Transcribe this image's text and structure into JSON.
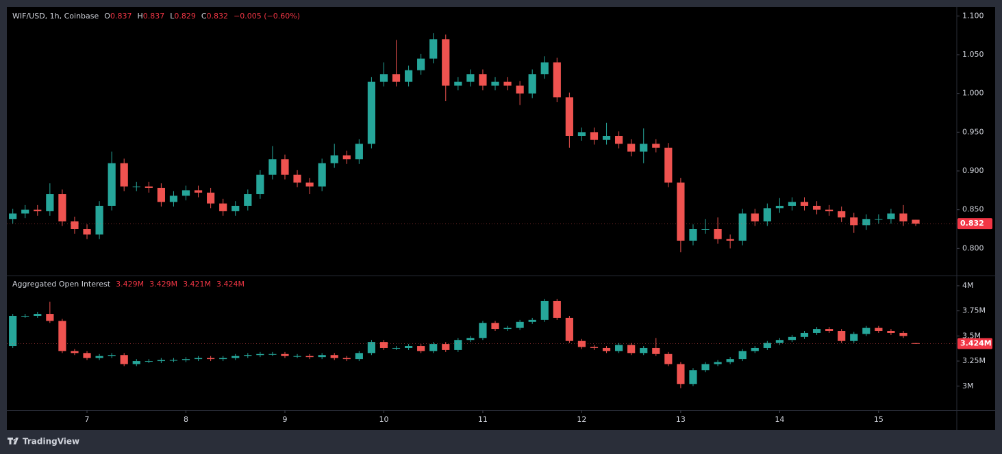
{
  "chart_data": [
    {
      "type": "candlestick",
      "title": "WIF/USD, 1h, Coinbase",
      "ohlc_labels": [
        {
          "label": "O",
          "value": "0.837"
        },
        {
          "label": "H",
          "value": "0.837"
        },
        {
          "label": "L",
          "value": "0.829"
        },
        {
          "label": "C",
          "value": "0.832"
        }
      ],
      "change": "−0.005 (−0.60%)",
      "up_color": "#26a69a",
      "down_color": "#ef5350",
      "x": [
        6.25,
        6.375,
        6.5,
        6.625,
        6.75,
        6.875,
        7,
        7.125,
        7.25,
        7.375,
        7.5,
        7.625,
        7.75,
        7.875,
        8,
        8.125,
        8.25,
        8.375,
        8.5,
        8.625,
        8.75,
        8.875,
        9,
        9.125,
        9.25,
        9.375,
        9.5,
        9.625,
        9.75,
        9.875,
        10,
        10.125,
        10.25,
        10.375,
        10.5,
        10.625,
        10.75,
        10.875,
        11,
        11.125,
        11.25,
        11.375,
        11.5,
        11.625,
        11.75,
        11.875,
        12,
        12.125,
        12.25,
        12.375,
        12.5,
        12.625,
        12.75,
        12.875,
        13,
        13.125,
        13.25,
        13.375,
        13.5,
        13.625,
        13.75,
        13.875,
        14,
        14.125,
        14.25,
        14.375,
        14.5,
        14.625,
        14.75,
        14.875,
        15,
        15.125,
        15.25,
        15.375
      ],
      "open": [
        0.838,
        0.845,
        0.85,
        0.848,
        0.87,
        0.835,
        0.825,
        0.818,
        0.855,
        0.91,
        0.88,
        0.88,
        0.878,
        0.86,
        0.868,
        0.875,
        0.872,
        0.858,
        0.848,
        0.855,
        0.87,
        0.895,
        0.915,
        0.895,
        0.885,
        0.88,
        0.91,
        0.92,
        0.915,
        0.935,
        1.015,
        1.025,
        1.015,
        1.03,
        1.045,
        1.07,
        1.01,
        1.015,
        1.025,
        1.01,
        1.015,
        1.01,
        1,
        1.025,
        1.04,
        0.995,
        0.945,
        0.95,
        0.94,
        0.945,
        0.935,
        0.925,
        0.935,
        0.93,
        0.885,
        0.81,
        0.825,
        0.825,
        0.812,
        0.81,
        0.845,
        0.835,
        0.852,
        0.855,
        0.86,
        0.855,
        0.85,
        0.848,
        0.84,
        0.83,
        0.838,
        0.838,
        0.845,
        0.837
      ],
      "high": [
        0.851,
        0.856,
        0.856,
        0.884,
        0.876,
        0.841,
        0.831,
        0.861,
        0.925,
        0.916,
        0.886,
        0.886,
        0.884,
        0.874,
        0.881,
        0.881,
        0.878,
        0.864,
        0.861,
        0.876,
        0.901,
        0.932,
        0.921,
        0.901,
        0.891,
        0.916,
        0.935,
        0.926,
        0.941,
        1.021,
        1.04,
        1.069,
        1.036,
        1.051,
        1.078,
        1.076,
        1.021,
        1.031,
        1.031,
        1.021,
        1.021,
        1.016,
        1.031,
        1.048,
        1.046,
        1.001,
        0.956,
        0.956,
        0.962,
        0.951,
        0.941,
        0.955,
        0.941,
        0.936,
        0.891,
        0.831,
        0.838,
        0.84,
        0.818,
        0.851,
        0.851,
        0.858,
        0.865,
        0.866,
        0.866,
        0.861,
        0.856,
        0.854,
        0.846,
        0.844,
        0.844,
        0.851,
        0.856,
        0.837
      ],
      "low": [
        0.832,
        0.839,
        0.842,
        0.842,
        0.829,
        0.819,
        0.812,
        0.812,
        0.849,
        0.874,
        0.874,
        0.872,
        0.854,
        0.854,
        0.862,
        0.866,
        0.852,
        0.842,
        0.842,
        0.849,
        0.864,
        0.889,
        0.889,
        0.879,
        0.87,
        0.874,
        0.904,
        0.909,
        0.909,
        0.929,
        1.009,
        1.009,
        1.009,
        1.024,
        1.039,
        0.99,
        1.004,
        1.009,
        1.004,
        1.004,
        1.004,
        0.985,
        0.994,
        1.019,
        0.989,
        0.93,
        0.939,
        0.934,
        0.934,
        0.929,
        0.919,
        0.91,
        0.924,
        0.879,
        0.795,
        0.804,
        0.819,
        0.806,
        0.8,
        0.804,
        0.829,
        0.829,
        0.846,
        0.849,
        0.849,
        0.844,
        0.842,
        0.834,
        0.82,
        0.824,
        0.832,
        0.832,
        0.829,
        0.829
      ],
      "close": [
        0.845,
        0.85,
        0.848,
        0.87,
        0.835,
        0.825,
        0.818,
        0.855,
        0.91,
        0.88,
        0.88,
        0.878,
        0.86,
        0.868,
        0.875,
        0.872,
        0.858,
        0.848,
        0.855,
        0.87,
        0.895,
        0.915,
        0.895,
        0.885,
        0.88,
        0.91,
        0.92,
        0.915,
        0.935,
        1.015,
        1.025,
        1.015,
        1.03,
        1.045,
        1.07,
        1.01,
        1.015,
        1.025,
        1.01,
        1.015,
        1.01,
        1,
        1.025,
        1.04,
        0.995,
        0.945,
        0.95,
        0.94,
        0.945,
        0.935,
        0.925,
        0.935,
        0.93,
        0.885,
        0.81,
        0.825,
        0.825,
        0.812,
        0.81,
        0.845,
        0.835,
        0.852,
        0.855,
        0.86,
        0.855,
        0.85,
        0.848,
        0.84,
        0.83,
        0.838,
        0.838,
        0.845,
        0.835,
        0.832
      ],
      "xlim": [
        6.19,
        15.79
      ],
      "ylim": [
        0.765,
        1.11
      ],
      "yticks": [
        {
          "value": 0.8,
          "label": "0.800"
        },
        {
          "value": 0.85,
          "label": "0.850"
        },
        {
          "value": 0.9,
          "label": "0.900"
        },
        {
          "value": 0.95,
          "label": "0.950"
        },
        {
          "value": 1,
          "label": "1.000"
        },
        {
          "value": 1.05,
          "label": "1.050"
        },
        {
          "value": 1.1,
          "label": "1.100"
        }
      ]
    },
    {
      "type": "candlestick",
      "title": "Aggregated Open Interest",
      "ohlc_labels": [
        "3.429M",
        "3.429M",
        "3.421M",
        "3.424M"
      ],
      "last_value_label": "3.424M",
      "up_color": "#26a69a",
      "down_color": "#ef5350",
      "x": [
        6.25,
        6.375,
        6.5,
        6.625,
        6.75,
        6.875,
        7,
        7.125,
        7.25,
        7.375,
        7.5,
        7.625,
        7.75,
        7.875,
        8,
        8.125,
        8.25,
        8.375,
        8.5,
        8.625,
        8.75,
        8.875,
        9,
        9.125,
        9.25,
        9.375,
        9.5,
        9.625,
        9.75,
        9.875,
        10,
        10.125,
        10.25,
        10.375,
        10.5,
        10.625,
        10.75,
        10.875,
        11,
        11.125,
        11.25,
        11.375,
        11.5,
        11.625,
        11.75,
        11.875,
        12,
        12.125,
        12.25,
        12.375,
        12.5,
        12.625,
        12.75,
        12.875,
        13,
        13.125,
        13.25,
        13.375,
        13.5,
        13.625,
        13.75,
        13.875,
        14,
        14.125,
        14.25,
        14.375,
        14.5,
        14.625,
        14.75,
        14.875,
        15,
        15.125,
        15.25,
        15.375
      ],
      "open": [
        3.4,
        3.7,
        3.7,
        3.72,
        3.65,
        3.35,
        3.33,
        3.28,
        3.3,
        3.31,
        3.22,
        3.25,
        3.25,
        3.26,
        3.26,
        3.27,
        3.28,
        3.27,
        3.28,
        3.3,
        3.31,
        3.32,
        3.32,
        3.3,
        3.3,
        3.29,
        3.31,
        3.28,
        3.27,
        3.33,
        3.44,
        3.38,
        3.38,
        3.4,
        3.35,
        3.42,
        3.36,
        3.46,
        3.48,
        3.63,
        3.57,
        3.58,
        3.64,
        3.66,
        3.85,
        3.68,
        3.45,
        3.39,
        3.38,
        3.35,
        3.41,
        3.33,
        3.38,
        3.32,
        3.22,
        3.02,
        3.16,
        3.22,
        3.24,
        3.27,
        3.35,
        3.38,
        3.43,
        3.46,
        3.49,
        3.53,
        3.57,
        3.55,
        3.45,
        3.52,
        3.58,
        3.55,
        3.53,
        3.429
      ],
      "high": [
        3.72,
        3.72,
        3.74,
        3.84,
        3.67,
        3.37,
        3.35,
        3.32,
        3.33,
        3.33,
        3.27,
        3.27,
        3.28,
        3.28,
        3.29,
        3.3,
        3.3,
        3.3,
        3.32,
        3.33,
        3.34,
        3.34,
        3.34,
        3.32,
        3.32,
        3.33,
        3.33,
        3.3,
        3.35,
        3.46,
        3.46,
        3.4,
        3.42,
        3.42,
        3.44,
        3.44,
        3.48,
        3.5,
        3.65,
        3.65,
        3.6,
        3.66,
        3.68,
        3.87,
        3.87,
        3.7,
        3.47,
        3.41,
        3.4,
        3.43,
        3.43,
        3.4,
        3.48,
        3.34,
        3.24,
        3.18,
        3.24,
        3.26,
        3.29,
        3.37,
        3.4,
        3.45,
        3.48,
        3.51,
        3.55,
        3.59,
        3.59,
        3.57,
        3.54,
        3.6,
        3.6,
        3.57,
        3.55,
        3.429
      ],
      "low": [
        3.38,
        3.68,
        3.68,
        3.63,
        3.33,
        3.31,
        3.26,
        3.26,
        3.28,
        3.2,
        3.2,
        3.23,
        3.23,
        3.24,
        3.24,
        3.25,
        3.25,
        3.25,
        3.26,
        3.28,
        3.29,
        3.3,
        3.28,
        3.28,
        3.27,
        3.27,
        3.26,
        3.25,
        3.25,
        3.31,
        3.36,
        3.36,
        3.36,
        3.33,
        3.33,
        3.34,
        3.34,
        3.44,
        3.46,
        3.55,
        3.55,
        3.56,
        3.62,
        3.64,
        3.66,
        3.43,
        3.37,
        3.36,
        3.33,
        3.33,
        3.31,
        3.31,
        3.3,
        3.2,
        2.98,
        3.0,
        3.14,
        3.2,
        3.22,
        3.25,
        3.33,
        3.36,
        3.41,
        3.44,
        3.47,
        3.51,
        3.53,
        3.43,
        3.43,
        3.5,
        3.53,
        3.51,
        3.48,
        3.421
      ],
      "close": [
        3.7,
        3.7,
        3.72,
        3.65,
        3.35,
        3.33,
        3.28,
        3.3,
        3.31,
        3.22,
        3.25,
        3.25,
        3.26,
        3.26,
        3.27,
        3.28,
        3.27,
        3.28,
        3.3,
        3.31,
        3.32,
        3.32,
        3.3,
        3.3,
        3.29,
        3.31,
        3.28,
        3.27,
        3.33,
        3.44,
        3.38,
        3.38,
        3.4,
        3.35,
        3.42,
        3.36,
        3.46,
        3.48,
        3.63,
        3.57,
        3.58,
        3.64,
        3.66,
        3.85,
        3.68,
        3.45,
        3.39,
        3.38,
        3.35,
        3.41,
        3.33,
        3.38,
        3.32,
        3.22,
        3.02,
        3.16,
        3.22,
        3.24,
        3.27,
        3.35,
        3.38,
        3.43,
        3.46,
        3.49,
        3.53,
        3.57,
        3.55,
        3.45,
        3.52,
        3.58,
        3.55,
        3.53,
        3.5,
        3.424
      ],
      "xlim": [
        6.19,
        15.79
      ],
      "ylim": [
        2.76,
        4.095
      ],
      "xticks": [
        7,
        8,
        9,
        10,
        11,
        12,
        13,
        14,
        15
      ],
      "yticks": [
        {
          "value": 3,
          "label": "3M"
        },
        {
          "value": 3.25,
          "label": "3.25M"
        },
        {
          "value": 3.5,
          "label": "3.5M"
        },
        {
          "value": 3.75,
          "label": "3.75M"
        },
        {
          "value": 4,
          "label": "4M"
        }
      ]
    }
  ],
  "brand": "TradingView"
}
